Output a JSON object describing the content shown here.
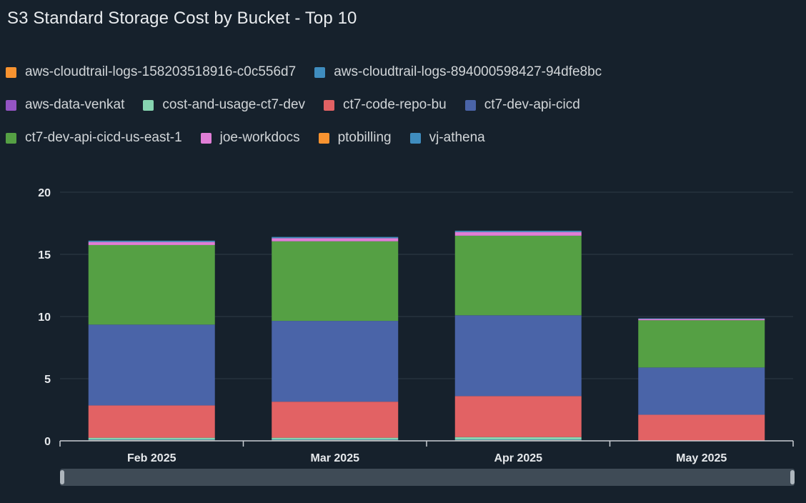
{
  "title": "S3 Standard Storage Cost by Bucket - Top 10",
  "chart_data": {
    "type": "bar",
    "stacked": true,
    "title": "S3 Standard Storage Cost by Bucket - Top 10",
    "categories": [
      "Feb 2025",
      "Mar 2025",
      "Apr 2025",
      "May 2025"
    ],
    "ylim": [
      0,
      20
    ],
    "yticks": [
      "0",
      "5",
      "10",
      "15",
      "20"
    ],
    "grid": true,
    "legend_position": "top",
    "series": [
      {
        "name": "aws-cloudtrail-logs-158203518916-c0c556d7",
        "color": "#f89330",
        "values": [
          0.05,
          0.05,
          0.05,
          0.0
        ]
      },
      {
        "name": "aws-cloudtrail-logs-894000598427-94dfe8bc",
        "color": "#3f8dbf",
        "values": [
          0.05,
          0.05,
          0.05,
          0.0
        ]
      },
      {
        "name": "aws-data-venkat",
        "color": "#9454c4",
        "values": [
          0.0,
          0.0,
          0.0,
          0.0
        ]
      },
      {
        "name": "cost-and-usage-ct7-dev",
        "color": "#86d4b0",
        "values": [
          0.15,
          0.15,
          0.2,
          0.0
        ]
      },
      {
        "name": "ct7-code-repo-bu",
        "color": "#e26264",
        "values": [
          2.6,
          2.9,
          3.3,
          2.1
        ]
      },
      {
        "name": "ct7-dev-api-cicd",
        "color": "#4a64a8",
        "values": [
          6.5,
          6.5,
          6.5,
          3.8
        ]
      },
      {
        "name": "ct7-dev-api-cicd-us-east-1",
        "color": "#55a044",
        "values": [
          6.4,
          6.4,
          6.4,
          3.8
        ]
      },
      {
        "name": "joe-workdocs",
        "color": "#e07ed6",
        "values": [
          0.25,
          0.25,
          0.3,
          0.1
        ]
      },
      {
        "name": "ptobilling",
        "color": "#f89330",
        "values": [
          0.0,
          0.0,
          0.0,
          0.0
        ]
      },
      {
        "name": "vj-athena",
        "color": "#3f8dbf",
        "values": [
          0.1,
          0.1,
          0.1,
          0.05
        ]
      }
    ]
  },
  "legend": {
    "rows": [
      [
        0,
        1
      ],
      [
        2,
        3,
        4,
        5
      ],
      [
        6,
        7,
        8,
        9
      ]
    ]
  },
  "colors": {
    "background": "#16212c",
    "grid": "#2d3a46",
    "axis": "#c9ced3",
    "scrollbar": "#3f4b56",
    "scroll_handle": "#aeb6bd"
  }
}
